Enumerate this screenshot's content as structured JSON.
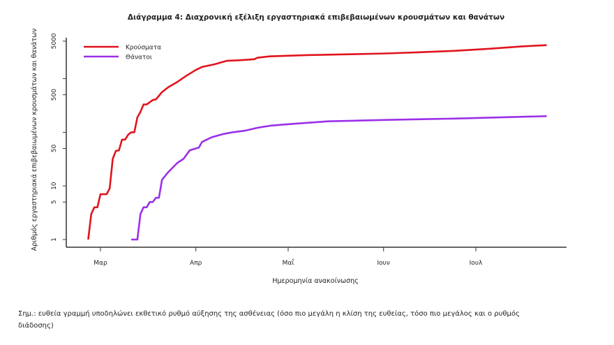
{
  "chart_data": {
    "type": "line",
    "title": "Διάγραμμα 4: Διαχρονική εξέλιξη εργαστηριακά επιβεβαιωμένων κρουσμάτων και θανάτων",
    "xlabel": "Ημερομηνία ανακοίνωσης",
    "ylabel": "Αριθμός εργαστηριακά επιβεβαιωμένων κρουσμάτων και θανάτων",
    "yscale": "log",
    "ylim": [
      1,
      5000
    ],
    "yticks": [
      1,
      5,
      10,
      50,
      100,
      500,
      1000,
      5000
    ],
    "ytick_labels": [
      "1",
      "5",
      "10",
      "50",
      "",
      "500",
      "",
      "5000"
    ],
    "xticks": [
      {
        "date": "2020-03-01",
        "label": "Μαρ"
      },
      {
        "date": "2020-04-01",
        "label": "Απρ"
      },
      {
        "date": "2020-05-01",
        "label": "Μαΐ"
      },
      {
        "date": "2020-06-01",
        "label": "Ιουν"
      },
      {
        "date": "2020-07-01",
        "label": "Ιουλ"
      }
    ],
    "xlim": [
      "2020-02-15",
      "2020-08-04"
    ],
    "grid": false,
    "legend_position": "top-left",
    "series": [
      {
        "name": "Κρούσματα",
        "color": "#e0141e",
        "points": [
          [
            "2020-02-26",
            1
          ],
          [
            "2020-02-27",
            3
          ],
          [
            "2020-02-28",
            4
          ],
          [
            "2020-02-29",
            4
          ],
          [
            "2020-03-01",
            7
          ],
          [
            "2020-03-03",
            7
          ],
          [
            "2020-03-04",
            9
          ],
          [
            "2020-03-05",
            32
          ],
          [
            "2020-03-06",
            45
          ],
          [
            "2020-03-07",
            46
          ],
          [
            "2020-03-08",
            73
          ],
          [
            "2020-03-09",
            73
          ],
          [
            "2020-03-10",
            90
          ],
          [
            "2020-03-11",
            100
          ],
          [
            "2020-03-12",
            100
          ],
          [
            "2020-03-13",
            190
          ],
          [
            "2020-03-14",
            240
          ],
          [
            "2020-03-15",
            330
          ],
          [
            "2020-03-16",
            330
          ],
          [
            "2020-03-18",
            400
          ],
          [
            "2020-03-19",
            410
          ],
          [
            "2020-03-20",
            480
          ],
          [
            "2020-03-21",
            560
          ],
          [
            "2020-03-23",
            690
          ],
          [
            "2020-03-26",
            870
          ],
          [
            "2020-03-29",
            1140
          ],
          [
            "2020-04-01",
            1450
          ],
          [
            "2020-04-03",
            1650
          ],
          [
            "2020-04-07",
            1850
          ],
          [
            "2020-04-11",
            2150
          ],
          [
            "2020-04-15",
            2200
          ],
          [
            "2020-04-20",
            2300
          ],
          [
            "2020-04-21",
            2450
          ],
          [
            "2020-04-25",
            2600
          ],
          [
            "2020-05-07",
            2750
          ],
          [
            "2020-05-21",
            2850
          ],
          [
            "2020-06-02",
            2950
          ],
          [
            "2020-06-12",
            3100
          ],
          [
            "2020-06-24",
            3300
          ],
          [
            "2020-07-05",
            3600
          ],
          [
            "2020-07-16",
            4000
          ],
          [
            "2020-07-24",
            4200
          ]
        ]
      },
      {
        "name": "Θάνατοι",
        "color": "#9b30e8",
        "points": [
          [
            "2020-03-11",
            1
          ],
          [
            "2020-03-13",
            1
          ],
          [
            "2020-03-14",
            3
          ],
          [
            "2020-03-15",
            4
          ],
          [
            "2020-03-16",
            4
          ],
          [
            "2020-03-17",
            5
          ],
          [
            "2020-03-18",
            5
          ],
          [
            "2020-03-19",
            6
          ],
          [
            "2020-03-20",
            6
          ],
          [
            "2020-03-21",
            13
          ],
          [
            "2020-03-23",
            18
          ],
          [
            "2020-03-26",
            27
          ],
          [
            "2020-03-28",
            32
          ],
          [
            "2020-03-30",
            46
          ],
          [
            "2020-04-02",
            52
          ],
          [
            "2020-04-03",
            66
          ],
          [
            "2020-04-06",
            80
          ],
          [
            "2020-04-10",
            93
          ],
          [
            "2020-04-13",
            100
          ],
          [
            "2020-04-17",
            107
          ],
          [
            "2020-04-21",
            121
          ],
          [
            "2020-04-25",
            132
          ],
          [
            "2020-04-30",
            140
          ],
          [
            "2020-05-07",
            150
          ],
          [
            "2020-05-14",
            160
          ],
          [
            "2020-06-02",
            170
          ],
          [
            "2020-06-24",
            180
          ],
          [
            "2020-07-24",
            200
          ]
        ]
      }
    ]
  },
  "note": {
    "line1": "Σημ.: ευθεία γραμμή υποδηλώνει εκθετικό ρυθμό αύξησης της ασθένειας (όσο πιο μεγάλη η κλίση της ευθείας, τόσο πιο μεγάλος και ο ρυθμός",
    "line2": "διάδοσης)"
  }
}
